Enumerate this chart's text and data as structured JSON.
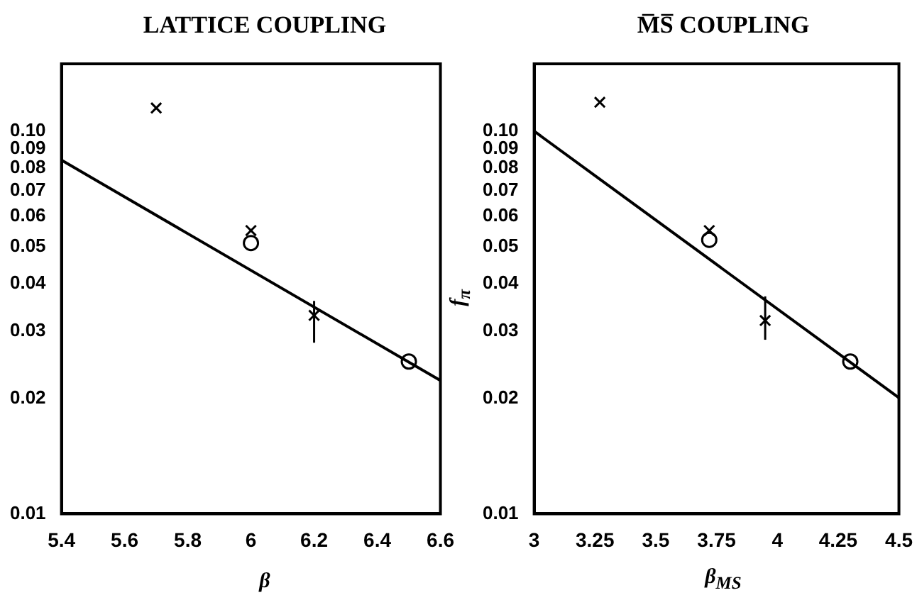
{
  "chart_data": [
    {
      "type": "scatter",
      "title": "LATTICE COUPLING",
      "xlabel": "β",
      "log": "y",
      "grid": false,
      "legend": false,
      "xlim": [
        5.4,
        6.6
      ],
      "xticks": [
        5.4,
        5.6,
        5.8,
        6,
        6.2,
        6.4,
        6.6
      ],
      "ylim": [
        0.01,
        0.15
      ],
      "yticks": [
        0.01,
        0.02,
        0.03,
        0.04,
        0.05,
        0.06,
        0.07,
        0.08,
        0.09,
        {
          "value": 0.1,
          "label": "0.10"
        }
      ],
      "series": [
        {
          "type": "scatter",
          "marker": "cross",
          "color": "#000000",
          "x": [
            5.7,
            6.0,
            6.2
          ],
          "values": [
            0.115,
            0.055,
            0.033
          ],
          "errors": [
            null,
            null,
            [
              0.028,
              0.036
            ]
          ]
        },
        {
          "type": "scatter",
          "marker": "circle",
          "color": "#000000",
          "x": [
            6.0,
            6.5
          ],
          "values": [
            0.051,
            0.025
          ]
        },
        {
          "type": "line",
          "marker": "none",
          "color": "#000000",
          "x": [
            5.4,
            6.6
          ],
          "values": [
            0.084,
            0.0223
          ]
        }
      ]
    },
    {
      "type": "scatter",
      "title": "M̅S̅ COUPLING",
      "xlabel": "β$_{MS}$",
      "ylabel": "f$_{π}$",
      "log": "y",
      "grid": false,
      "legend": false,
      "xlim": [
        3,
        4.5
      ],
      "xticks": [
        3,
        3.25,
        3.5,
        3.75,
        4,
        4.25,
        4.5
      ],
      "ylim": [
        0.01,
        0.15
      ],
      "yticks": [
        0.01,
        0.02,
        0.03,
        0.04,
        0.05,
        0.06,
        0.07,
        0.08,
        0.09,
        {
          "value": 0.1,
          "label": "0.10"
        }
      ],
      "series": [
        {
          "type": "scatter",
          "marker": "cross",
          "color": "#000000",
          "x": [
            3.27,
            3.72,
            3.95
          ],
          "values": [
            0.119,
            0.055,
            0.032
          ],
          "errors": [
            null,
            null,
            [
              0.0285,
              0.037
            ]
          ]
        },
        {
          "type": "scatter",
          "marker": "circle",
          "color": "#000000",
          "x": [
            3.72,
            4.3
          ],
          "values": [
            0.052,
            0.025
          ]
        },
        {
          "type": "line",
          "marker": "none",
          "color": "#000000",
          "x": [
            3,
            4.5
          ],
          "values": [
            0.1,
            0.0201
          ]
        }
      ]
    }
  ]
}
